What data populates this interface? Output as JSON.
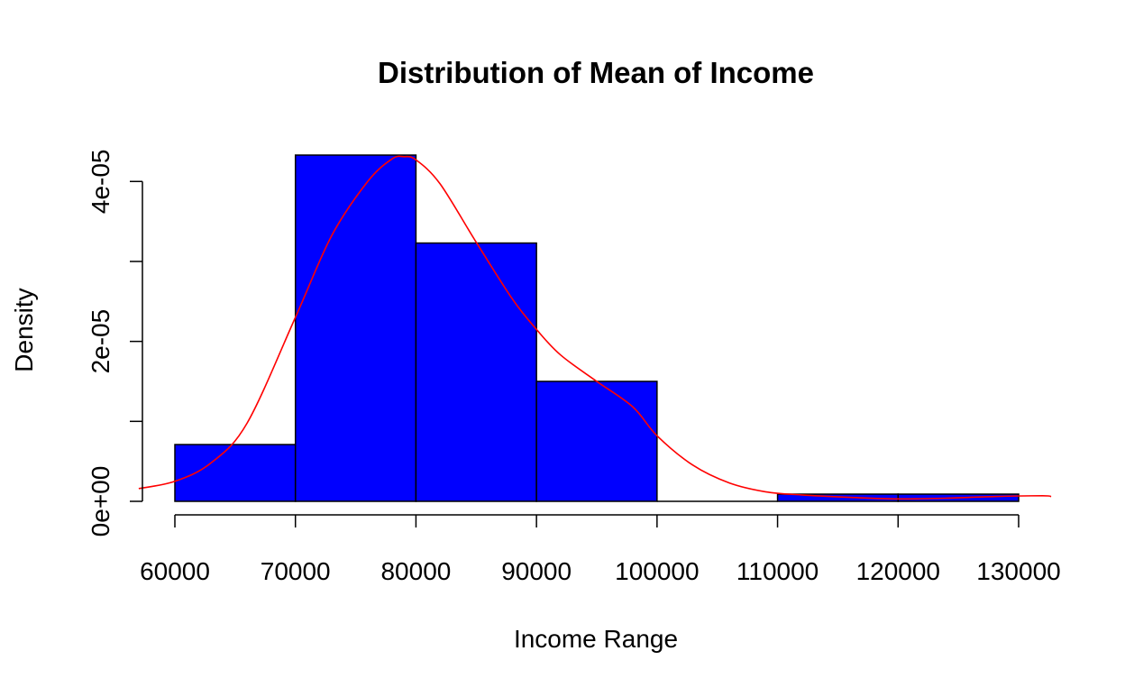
{
  "chart_data": {
    "type": "bar",
    "title": "Distribution of Mean of Income",
    "xlabel": "Income Range",
    "ylabel": "Density",
    "bins": [
      {
        "from": 60000,
        "to": 70000,
        "density": 7.1e-06
      },
      {
        "from": 70000,
        "to": 80000,
        "density": 4.33e-05
      },
      {
        "from": 80000,
        "to": 90000,
        "density": 3.23e-05
      },
      {
        "from": 90000,
        "to": 100000,
        "density": 1.5e-05
      },
      {
        "from": 100000,
        "to": 110000,
        "density": 0.0
      },
      {
        "from": 110000,
        "to": 120000,
        "density": 9e-07
      },
      {
        "from": 120000,
        "to": 130000,
        "density": 9e-07
      }
    ],
    "x_ticks": [
      60000,
      70000,
      80000,
      90000,
      100000,
      110000,
      120000,
      130000
    ],
    "x_tick_labels": [
      "60000",
      "70000",
      "80000",
      "90000",
      "100000",
      "110000",
      "120000",
      "130000"
    ],
    "y_ticks": [
      0,
      1e-05,
      2e-05,
      3e-05,
      4e-05
    ],
    "y_tick_labels": [
      "0e+00",
      "",
      "2e-05",
      "",
      "4e-05"
    ],
    "ylim": [
      0,
      4.33e-05
    ],
    "density_curve": {
      "x": [
        57000,
        60000,
        63000,
        66000,
        70000,
        73000,
        76000,
        78000,
        79000,
        80000,
        82000,
        85000,
        88000,
        90000,
        92000,
        95000,
        98000,
        100000,
        103000,
        106000,
        109000,
        112000,
        116000,
        120000,
        124000,
        128000,
        132000,
        132700
      ],
      "y": [
        1.6e-06,
        2.5e-06,
        4.8e-06,
        9.8e-06,
        2.3e-05,
        3.32e-05,
        4e-05,
        4.28e-05,
        4.31e-05,
        4.27e-05,
        3.97e-05,
        3.24e-05,
        2.53e-05,
        2.15e-05,
        1.83e-05,
        1.5e-05,
        1.18e-05,
        8.2e-06,
        4.5e-06,
        2.3e-06,
        1.2e-06,
        8e-07,
        5e-07,
        3e-07,
        4e-07,
        6e-07,
        7e-07,
        6e-07
      ]
    },
    "colors": {
      "bar_fill": "#0000ff",
      "bar_stroke": "#000000",
      "curve": "#ff0000",
      "axis": "#000000"
    },
    "grid": false,
    "legend": "none"
  }
}
